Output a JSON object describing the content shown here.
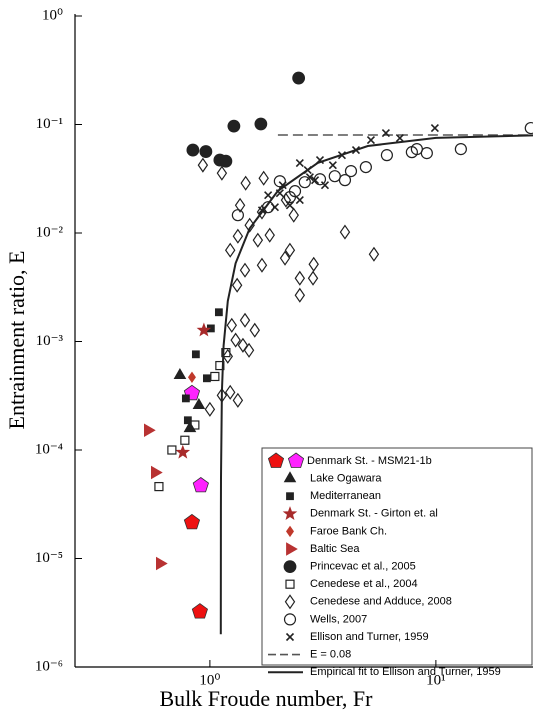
{
  "chart_data": {
    "type": "scatter",
    "xlabel": "Bulk Froude number, Fr",
    "ylabel": "Entrainment ratio, E",
    "xscale": "log",
    "yscale": "log",
    "xlim": [
      0.253,
      26.9
    ],
    "ylim": [
      1e-06,
      1
    ],
    "xticks": [
      {
        "value": 1,
        "label": "10⁰"
      },
      {
        "value": 10,
        "label": "10¹"
      }
    ],
    "yticks": [
      {
        "value": 1e-06,
        "label": "10⁻⁶"
      },
      {
        "value": 1e-05,
        "label": "10⁻⁵"
      },
      {
        "value": 0.0001,
        "label": "10⁻⁴"
      },
      {
        "value": 0.001,
        "label": "10⁻³"
      },
      {
        "value": 0.01,
        "label": "10⁻²"
      },
      {
        "value": 0.1,
        "label": "10⁻¹"
      },
      {
        "value": 1,
        "label": "10⁰"
      }
    ],
    "legend": "lower right",
    "series": [
      {
        "name": "Denmark St. - MSM21-1b",
        "kind": "scatter",
        "marker": "pentagon",
        "filled": true,
        "color": "#ee1111",
        "point_colors": [
          "#ee1111",
          "#ee1111",
          "#ff22ff",
          "#ff22ff"
        ],
        "x": [
          0.833,
          0.903,
          0.833,
          0.912
        ],
        "values": [
          2.15e-05,
          3.24e-06,
          0.000333,
          4.71e-05
        ]
      },
      {
        "name": "Lake Ogawara",
        "kind": "scatter",
        "marker": "triangle",
        "filled": true,
        "color": "#222222",
        "x": [
          0.737,
          0.816,
          0.894
        ],
        "values": [
          0.000488,
          0.000158,
          0.000258
        ]
      },
      {
        "name": "Mediterranean",
        "kind": "scatter",
        "marker": "square",
        "filled": true,
        "color": "#222222",
        "x": [
          1.096,
          1.01,
          0.867,
          0.799,
          0.783,
          0.97
        ],
        "values": [
          0.00186,
          0.00132,
          0.000762,
          0.000188,
          0.000299,
          0.000458
        ]
      },
      {
        "name": "Denmark St. - Girton et. al",
        "kind": "scatter",
        "marker": "star",
        "filled": true,
        "color": "#a82a2a",
        "x": [
          0.941,
          0.759
        ],
        "values": [
          0.00127,
          9.5e-05
        ]
      },
      {
        "name": "Faroe Bank Ch.",
        "kind": "scatter",
        "marker": "diamond",
        "filled": true,
        "color": "#c0392b",
        "x": [
          0.833
        ],
        "values": [
          0.000468
        ]
      },
      {
        "name": "Baltic Sea",
        "kind": "scatter",
        "marker": "triangle-right",
        "filled": true,
        "color": "#b83232",
        "x": [
          0.532,
          0.571,
          0.601
        ],
        "values": [
          0.000152,
          6.2e-05,
          9e-06
        ]
      },
      {
        "name": "Princevac et al., 2005",
        "kind": "scatter",
        "marker": "circle",
        "filled": true,
        "color": "#222222",
        "x": [
          2.47,
          0.841,
          0.96,
          1.107,
          1.177,
          1.277,
          1.681
        ],
        "values": [
          0.268,
          0.0581,
          0.0563,
          0.047,
          0.0459,
          0.0966,
          0.101
        ]
      },
      {
        "name": "Cenedese et al., 2004",
        "kind": "scatter",
        "marker": "square",
        "filled": false,
        "color": "#222222",
        "x": [
          0.595,
          0.679,
          0.775,
          0.858,
          1.052,
          1.107,
          1.177
        ],
        "values": [
          4.6e-05,
          0.0001,
          0.000123,
          0.00017,
          0.000476,
          0.0006,
          0.00079
        ]
      },
      {
        "name": "Cenedese and Adduce, 2008",
        "kind": "scatter",
        "marker": "diamond",
        "filled": false,
        "color": "#222222",
        "x": [
          0.931,
          1.13,
          1.44,
          1.73,
          1.36,
          1.7,
          1.23,
          1.33,
          1.5,
          1.84,
          2.15,
          2.26,
          1.7,
          2.5,
          2.88,
          1.43,
          1.32,
          1.3,
          1.4,
          1.49,
          1.25,
          1.43,
          1.58,
          1.33,
          1.13,
          1.0,
          1.23,
          1.2,
          3.96,
          5.32,
          2.5,
          2.86,
          1.63,
          2.17,
          2.35
        ],
        "values": [
          0.0422,
          0.0356,
          0.0288,
          0.032,
          0.018,
          0.0156,
          0.00694,
          0.00934,
          0.0118,
          0.00955,
          0.00586,
          0.00694,
          0.00505,
          0.00267,
          0.00515,
          0.00454,
          0.0033,
          0.00103,
          0.000923,
          0.00083,
          0.00141,
          0.00157,
          0.00127,
          0.000287,
          0.000319,
          0.000237,
          0.00034,
          0.00073,
          0.0102,
          0.00637,
          0.00383,
          0.00383,
          0.00859,
          0.0201,
          0.0146
        ]
      },
      {
        "name": "Wells, 2007",
        "kind": "scatter",
        "marker": "circle",
        "filled": false,
        "color": "#222222",
        "x": [
          26.3,
          12.9,
          8.24,
          7.83,
          6.07,
          4.9,
          4.21,
          3.57,
          3.07,
          2.63,
          2.04,
          2.38,
          2.26,
          1.81,
          1.33,
          3.96,
          9.12
        ],
        "values": [
          0.0927,
          0.0593,
          0.0593,
          0.0556,
          0.0522,
          0.0405,
          0.0372,
          0.0334,
          0.0313,
          0.0294,
          0.03,
          0.0243,
          0.0214,
          0.0173,
          0.0146,
          0.0307,
          0.0545
        ]
      },
      {
        "name": "Ellison and Turner, 1959",
        "kind": "scatter",
        "marker": "x",
        "filled": false,
        "color": "#222222",
        "x": [
          2.5,
          2.71,
          2.92,
          3.23,
          2.1,
          2.26,
          1.94,
          1.7,
          1.81,
          2.04,
          3.5,
          3.84,
          4.43,
          5.16,
          6.01,
          6.93,
          9.9,
          2.77,
          3.07,
          2.5
        ],
        "values": [
          0.0441,
          0.038,
          0.0307,
          0.0276,
          0.0276,
          0.018,
          0.0173,
          0.0162,
          0.0223,
          0.0233,
          0.0422,
          0.0522,
          0.0581,
          0.0718,
          0.0833,
          0.0749,
          0.0927,
          0.0327,
          0.047,
          0.0201
        ]
      },
      {
        "name": "E = 0.08",
        "kind": "line",
        "dash": true,
        "color": "#555555",
        "x": [
          2.0,
          26.9
        ],
        "values": [
          0.08,
          0.08
        ]
      },
      {
        "name": "Empirical fit to Ellison and Turner, 1959",
        "kind": "line",
        "dash": false,
        "color": "#222222",
        "x": [
          1.1181,
          1.119,
          1.12,
          1.13,
          1.15,
          1.2,
          1.3,
          1.5,
          2,
          3,
          5,
          10,
          26.9
        ],
        "values": [
          2e-06,
          2.77e-05,
          5.63e-05,
          0.000343,
          0.000917,
          0.00236,
          0.00526,
          0.01103,
          0.02444,
          0.04429,
          0.06333,
          0.07524,
          0.07932
        ]
      }
    ]
  }
}
